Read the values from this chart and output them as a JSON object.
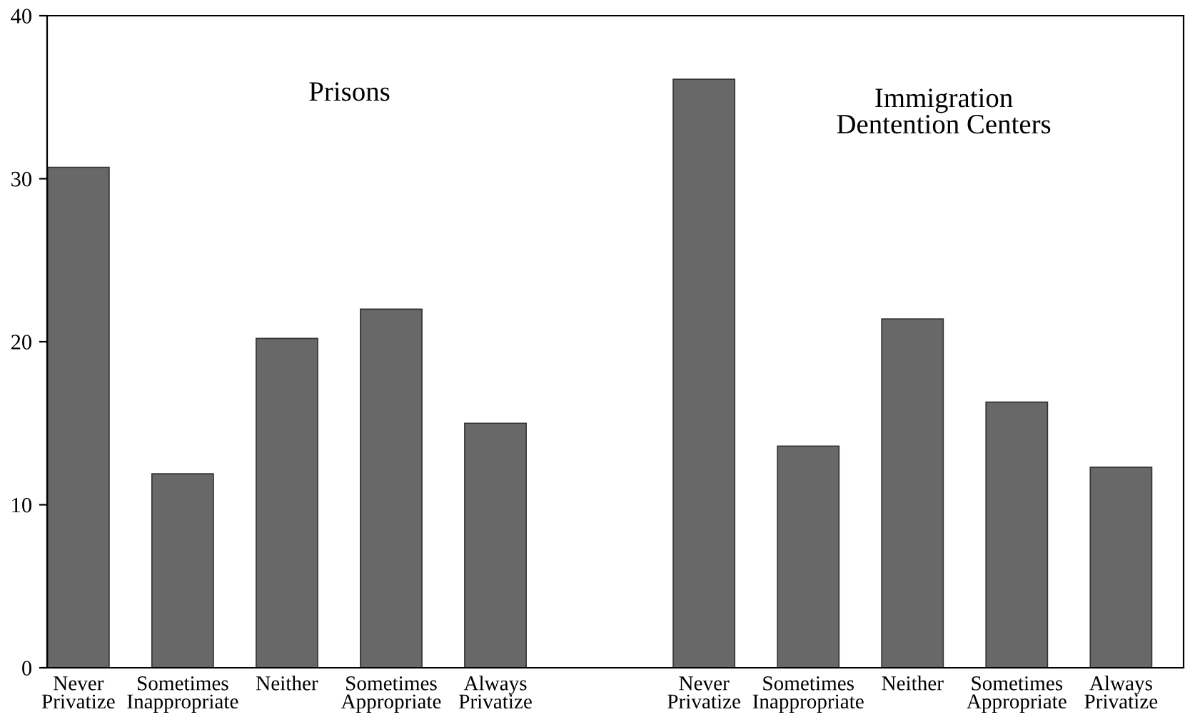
{
  "chart_data": {
    "type": "bar",
    "categories": [
      "Never\nPrivatize",
      "Sometimes\nInappropriate",
      "Neither",
      "Sometimes\nAppropriate",
      "Always\nPrivatize",
      null,
      "Never\nPrivatize",
      "Sometimes\nInappropriate",
      "Neither",
      "Sometimes\nAppropriate",
      "Always\nPrivatize"
    ],
    "values": [
      30.7,
      11.9,
      20.2,
      22.0,
      15.0,
      null,
      36.1,
      13.6,
      21.4,
      16.3,
      12.3
    ],
    "color": "#686868",
    "ylim": [
      0,
      40
    ],
    "yticks": [
      0,
      10,
      20,
      30,
      40
    ],
    "grid": false,
    "annotations": [
      "Prisons",
      "Immigration\nDentention Centers"
    ]
  }
}
